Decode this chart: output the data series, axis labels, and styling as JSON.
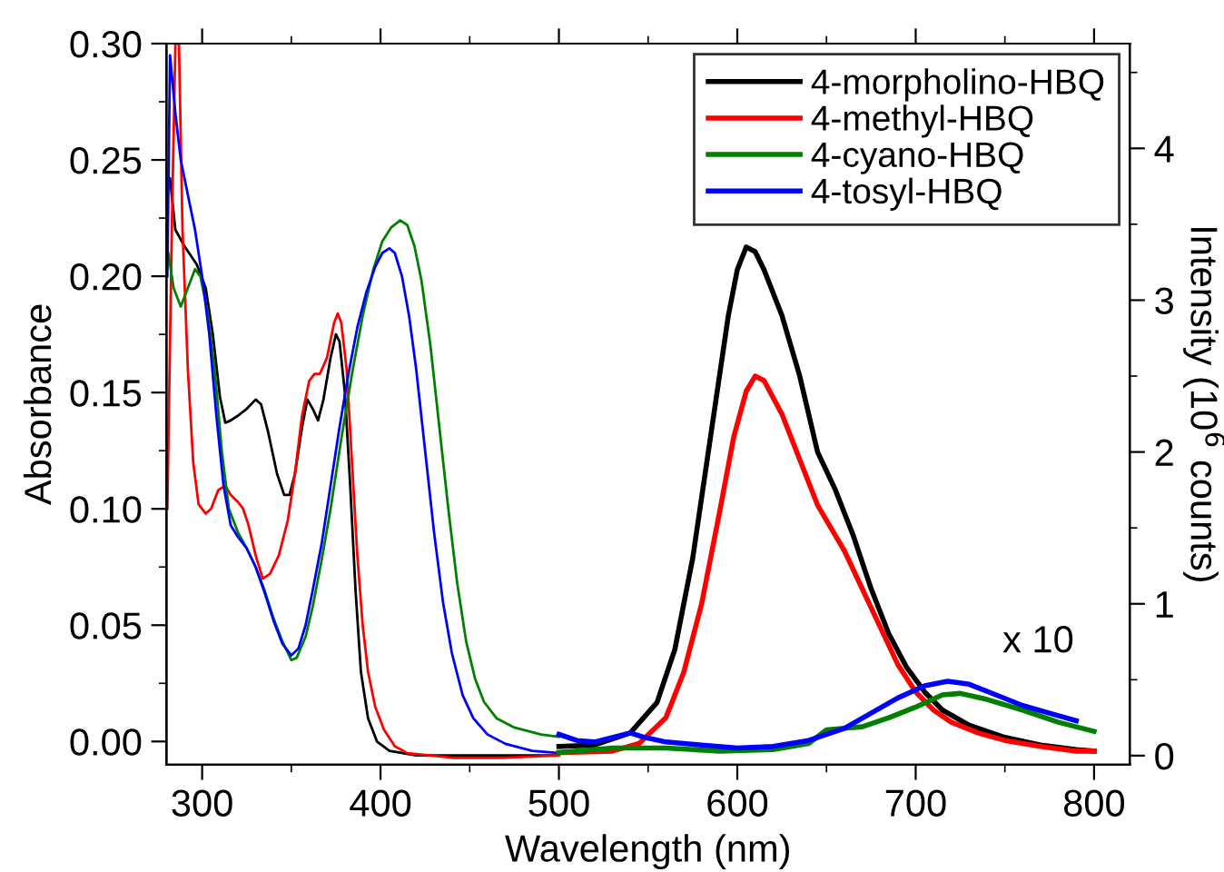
{
  "chart_data": {
    "type": "line",
    "xlabel": "Wavelength (nm)",
    "ylabel": "Absorbance",
    "y2label": "Intensity (10$^{6}$ counts)",
    "xlim": [
      280,
      820
    ],
    "ylim": [
      -0.01,
      0.3
    ],
    "y2lim": [
      -0.06,
      4.69
    ],
    "xticks": [
      300,
      {
        "value": 350,
        "label": null
      },
      400,
      {
        "value": 450,
        "label": null
      },
      500,
      {
        "value": 550,
        "label": null
      },
      600,
      {
        "value": 650,
        "label": null
      },
      700,
      {
        "value": 750,
        "label": null
      },
      800
    ],
    "yticks": [
      {
        "value": 0,
        "label": "0.00"
      },
      {
        "value": 0.025,
        "label": null
      },
      {
        "value": 0.05,
        "label": "0.05"
      },
      {
        "value": 0.075,
        "label": null
      },
      {
        "value": 0.1,
        "label": "0.10"
      },
      {
        "value": 0.125,
        "label": null
      },
      {
        "value": 0.15,
        "label": "0.15"
      },
      {
        "value": 0.175,
        "label": null
      },
      {
        "value": 0.2,
        "label": "0.20"
      },
      {
        "value": 0.225,
        "label": null
      },
      {
        "value": 0.25,
        "label": "0.25"
      },
      {
        "value": 0.275,
        "label": null
      },
      {
        "value": 0.3,
        "label": "0.30"
      }
    ],
    "y2ticks": [
      0,
      {
        "value": 0.5,
        "label": null
      },
      1,
      {
        "value": 1.5,
        "label": null
      },
      2,
      {
        "value": 2.5,
        "label": null
      },
      3,
      {
        "value": 3.5,
        "label": null
      },
      4,
      {
        "value": 4.5,
        "label": null
      }
    ],
    "grid": false,
    "legend": "top right",
    "marker": "none",
    "line_style": "solid",
    "annotations": [
      "x 10"
    ],
    "series": [
      {
        "name": "4-morpholino-HBQ",
        "color": "#000000",
        "x": [
          282,
          285,
          290,
          297,
          302,
          306,
          310,
          313,
          316,
          320,
          325,
          330,
          333,
          337,
          342,
          346,
          349,
          352,
          356,
          359,
          362,
          365,
          368,
          372,
          375,
          377,
          380,
          383,
          386,
          389,
          393,
          398,
          405,
          420,
          450,
          500
        ],
        "values": [
          0.242,
          0.22,
          0.213,
          0.205,
          0.195,
          0.175,
          0.148,
          0.137,
          0.138,
          0.14,
          0.143,
          0.147,
          0.145,
          0.133,
          0.115,
          0.106,
          0.106,
          0.115,
          0.135,
          0.147,
          0.143,
          0.138,
          0.147,
          0.165,
          0.175,
          0.172,
          0.15,
          0.11,
          0.065,
          0.03,
          0.01,
          0.0,
          -0.004,
          -0.006,
          -0.006,
          -0.006
        ]
      },
      {
        "name": "4-methyl-HBQ",
        "color": "#ff0000",
        "x": [
          280.5,
          283,
          285,
          287,
          289,
          292,
          295,
          298,
          302,
          305,
          309,
          313,
          316,
          320,
          323,
          326,
          330,
          334,
          338,
          343,
          348,
          352,
          356,
          360,
          363,
          366,
          370,
          374,
          376,
          378,
          381,
          384,
          387,
          390,
          393,
          397,
          402,
          408,
          415,
          440,
          470,
          500
        ],
        "values": [
          0.1,
          0.22,
          0.3,
          0.3,
          0.22,
          0.16,
          0.12,
          0.102,
          0.098,
          0.1,
          0.108,
          0.11,
          0.106,
          0.103,
          0.1,
          0.093,
          0.08,
          0.07,
          0.072,
          0.08,
          0.095,
          0.115,
          0.14,
          0.155,
          0.158,
          0.158,
          0.165,
          0.18,
          0.184,
          0.18,
          0.16,
          0.12,
          0.08,
          0.05,
          0.03,
          0.015,
          0.005,
          -0.002,
          -0.005,
          -0.007,
          -0.007,
          -0.006
        ]
      },
      {
        "name": "4-cyano-HBQ",
        "color": "#008000",
        "x": [
          281,
          284,
          288,
          292,
          296,
          299,
          303,
          307,
          311,
          315,
          320,
          325,
          330,
          335,
          340,
          345,
          350,
          353,
          358,
          362,
          367,
          372,
          378,
          384,
          390,
          396,
          401,
          406,
          411,
          415,
          419,
          423,
          428,
          433,
          438,
          443,
          448,
          453,
          458,
          465,
          475,
          490,
          500
        ],
        "values": [
          0.21,
          0.195,
          0.187,
          0.195,
          0.203,
          0.2,
          0.185,
          0.16,
          0.125,
          0.1,
          0.09,
          0.083,
          0.075,
          0.065,
          0.053,
          0.043,
          0.035,
          0.036,
          0.045,
          0.058,
          0.078,
          0.1,
          0.13,
          0.158,
          0.183,
          0.203,
          0.215,
          0.221,
          0.224,
          0.222,
          0.213,
          0.198,
          0.17,
          0.135,
          0.1,
          0.068,
          0.043,
          0.027,
          0.017,
          0.01,
          0.006,
          0.003,
          0.002
        ]
      },
      {
        "name": "4-tosyl-HBQ",
        "color": "#0000ff",
        "x": [
          280.5,
          282,
          285,
          288,
          292,
          296,
          300,
          304,
          308,
          312,
          316,
          320,
          325,
          330,
          335,
          340,
          345,
          350,
          354,
          358,
          362,
          367,
          372,
          377,
          382,
          387,
          392,
          397,
          401,
          405,
          408,
          412,
          416,
          420,
          425,
          430,
          435,
          440,
          446,
          452,
          460,
          470,
          485,
          500
        ],
        "values": [
          0.2,
          0.295,
          0.27,
          0.25,
          0.235,
          0.22,
          0.2,
          0.175,
          0.14,
          0.11,
          0.093,
          0.088,
          0.083,
          0.075,
          0.064,
          0.052,
          0.042,
          0.037,
          0.04,
          0.05,
          0.065,
          0.085,
          0.11,
          0.135,
          0.158,
          0.178,
          0.193,
          0.204,
          0.21,
          0.212,
          0.21,
          0.2,
          0.183,
          0.16,
          0.125,
          0.09,
          0.06,
          0.038,
          0.02,
          0.01,
          0.003,
          -0.001,
          -0.004,
          -0.005
        ]
      },
      {
        "axis": "y2",
        "color": "#000000",
        "x": [
          500,
          520,
          540,
          555,
          565,
          575,
          585,
          595,
          600,
          605,
          610,
          615,
          625,
          635,
          645,
          655,
          665,
          675,
          685,
          695,
          705,
          715,
          730,
          750,
          770,
          790,
          800
        ],
        "values": [
          0.06,
          0.07,
          0.15,
          0.35,
          0.7,
          1.3,
          2.1,
          2.9,
          3.2,
          3.35,
          3.32,
          3.2,
          2.9,
          2.5,
          2.0,
          1.75,
          1.45,
          1.1,
          0.8,
          0.58,
          0.42,
          0.3,
          0.2,
          0.12,
          0.07,
          0.04,
          0.03
        ]
      },
      {
        "axis": "y2",
        "color": "#ff0000",
        "x": [
          500,
          530,
          545,
          560,
          570,
          580,
          590,
          598,
          605,
          610,
          615,
          625,
          635,
          645,
          650,
          660,
          670,
          680,
          690,
          700,
          710,
          720,
          735,
          750,
          770,
          790,
          800
        ],
        "values": [
          0.02,
          0.03,
          0.08,
          0.25,
          0.55,
          1.0,
          1.6,
          2.1,
          2.4,
          2.5,
          2.47,
          2.25,
          1.95,
          1.65,
          1.55,
          1.35,
          1.1,
          0.85,
          0.6,
          0.42,
          0.3,
          0.22,
          0.15,
          0.1,
          0.06,
          0.03,
          0.03
        ]
      },
      {
        "axis": "y2",
        "color": "#008000",
        "x": [
          500,
          530,
          560,
          590,
          620,
          640,
          650,
          660,
          670,
          685,
          700,
          715,
          725,
          740,
          760,
          780,
          800
        ],
        "values": [
          0.02,
          0.05,
          0.05,
          0.03,
          0.04,
          0.08,
          0.17,
          0.18,
          0.19,
          0.25,
          0.32,
          0.4,
          0.41,
          0.37,
          0.3,
          0.22,
          0.16
        ]
      },
      {
        "axis": "y2",
        "color": "#0000ff",
        "x": [
          500,
          510,
          520,
          530,
          540,
          548,
          560,
          580,
          600,
          620,
          640,
          660,
          675,
          690,
          705,
          718,
          730,
          745,
          760,
          775,
          790
        ],
        "values": [
          0.14,
          0.1,
          0.09,
          0.12,
          0.15,
          0.12,
          0.09,
          0.07,
          0.05,
          0.06,
          0.1,
          0.18,
          0.28,
          0.38,
          0.46,
          0.49,
          0.47,
          0.4,
          0.33,
          0.28,
          0.23
        ]
      }
    ]
  }
}
